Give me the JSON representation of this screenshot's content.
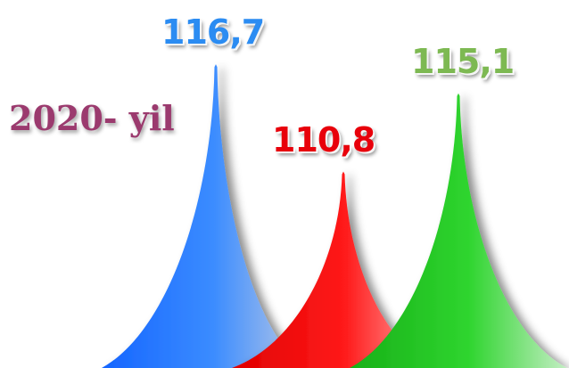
{
  "chart_data": {
    "type": "bar",
    "title": "2020- yil",
    "categories": [
      "",
      "",
      ""
    ],
    "series": [
      {
        "values": [
          116.7,
          110.8,
          115.1
        ]
      }
    ],
    "value_labels": [
      "116,7",
      "110,8",
      "115,1"
    ],
    "colors": [
      "#1e7bff",
      "#ff0000",
      "#22cc22"
    ],
    "label_colors": [
      "#2b8cf2",
      "#e8000b",
      "#7db952"
    ],
    "ylim": [
      100,
      117
    ]
  }
}
